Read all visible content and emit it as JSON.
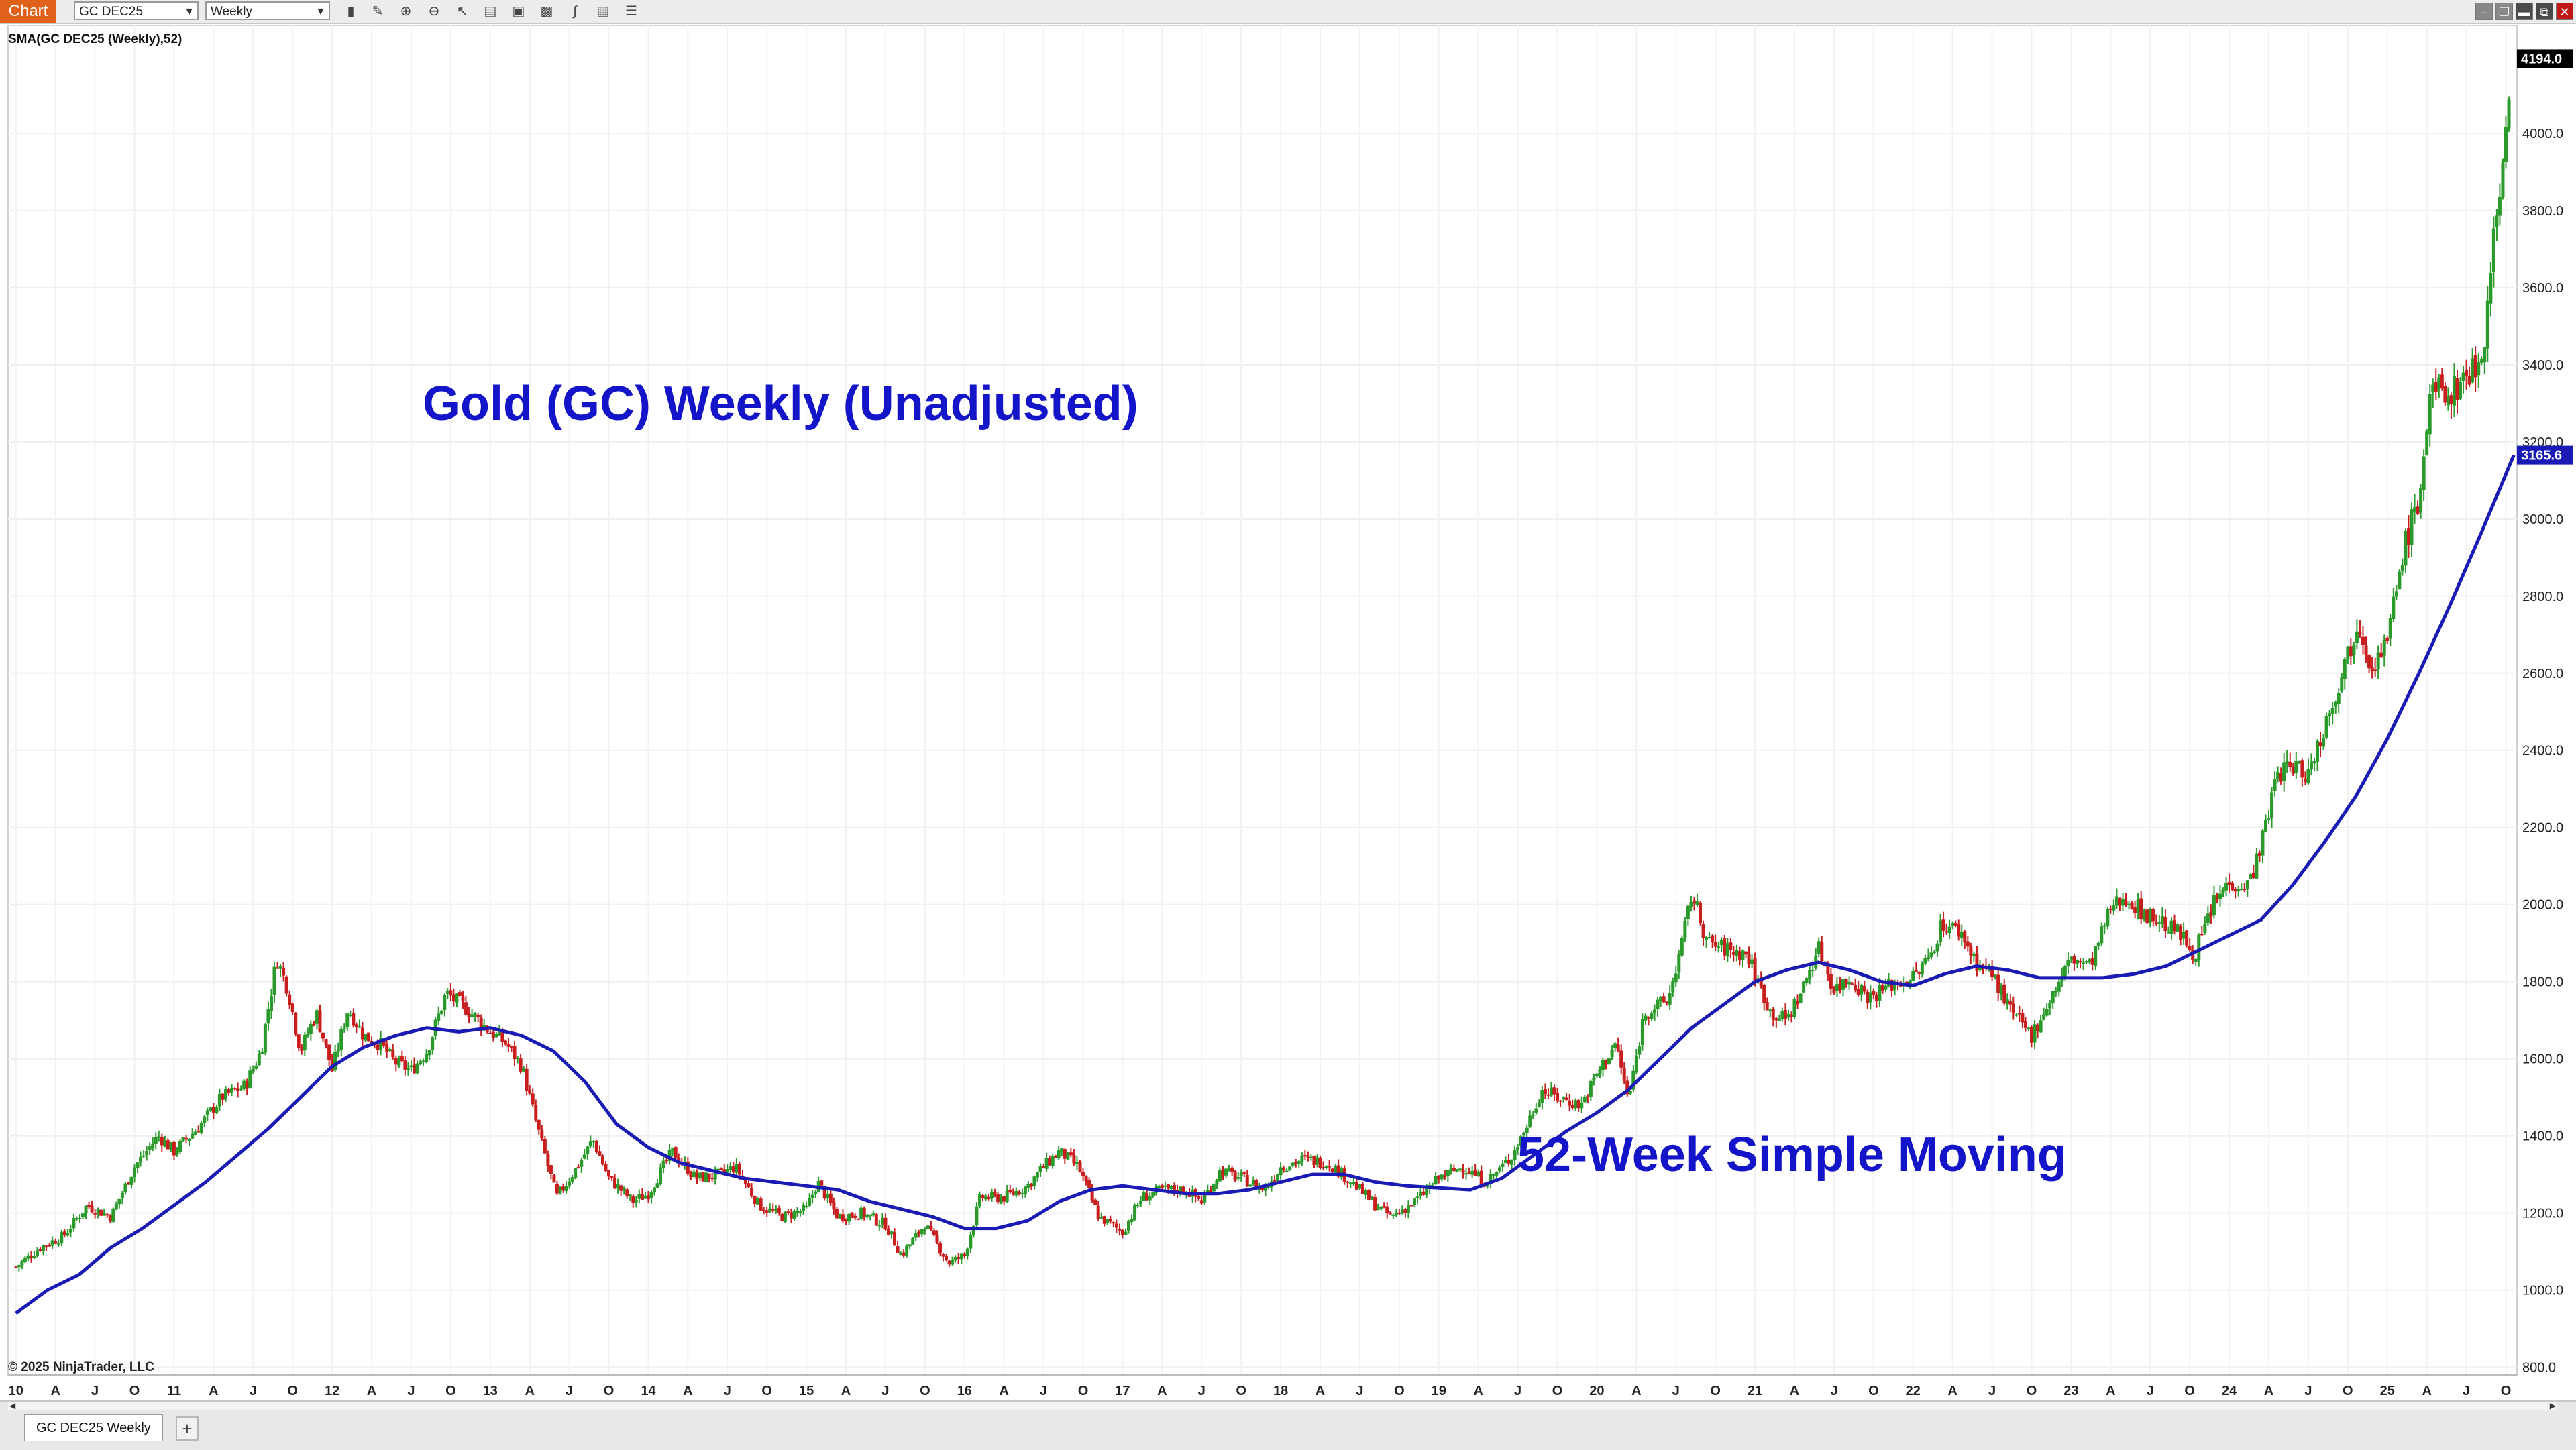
{
  "toolbar": {
    "chart_tab": "Chart",
    "instrument": "GC DEC25",
    "interval": "Weekly",
    "icons": [
      "bar-type-icon",
      "draw-tools-icon",
      "zoom-in-icon",
      "zoom-out-icon",
      "pointer-icon",
      "properties-icon",
      "templates-icon",
      "data-box-icon",
      "indicators-icon",
      "strategies-icon",
      "list-icon"
    ],
    "window_buttons": [
      "minimize-icon",
      "restore-icon",
      "maximize-icon",
      "close-icon"
    ]
  },
  "indicator_label": "SMA(GC DEC25 (Weekly),52)",
  "copyright": "© 2025 NinjaTrader, LLC",
  "bottom": {
    "instrument_tab": "GC DEC25 Weekly",
    "add_tab": "+"
  },
  "colors": {
    "up_candle": "#2a9a2a",
    "down_candle": "#c81e1e",
    "sma_line": "#1a1ab4",
    "annotation": "#1414c8",
    "price_badge": "#000000",
    "sma_badge": "#1a1ab4",
    "accent": "#e0611a"
  },
  "chart_data": {
    "type": "candlestick",
    "title": "Gold (GC) Weekly (Unadjusted)",
    "annotation": "52-Week Simple Moving",
    "ylim": [
      780,
      4280
    ],
    "y_ticks": [
      800,
      1000,
      1200,
      1400,
      1600,
      1800,
      2000,
      2200,
      2400,
      2600,
      2800,
      3000,
      3200,
      3400,
      3600,
      3800,
      4000
    ],
    "y_tick_labels": [
      "800.0",
      "1000.0",
      "1200.0",
      "1400.0",
      "1600.0",
      "1800.0",
      "2000.0",
      "2200.0",
      "2400.0",
      "2600.0",
      "2800.0",
      "3000.0",
      "3200.0",
      "3400.0",
      "3600.0",
      "3800.0",
      "4000.0"
    ],
    "x_range": [
      2009.95,
      2025.82
    ],
    "x_ticks": [
      {
        "label": "10",
        "t": 2010.0
      },
      {
        "label": "A",
        "t": 2010.25
      },
      {
        "label": "J",
        "t": 2010.5
      },
      {
        "label": "O",
        "t": 2010.75
      },
      {
        "label": "11",
        "t": 2011.0
      },
      {
        "label": "A",
        "t": 2011.25
      },
      {
        "label": "J",
        "t": 2011.5
      },
      {
        "label": "O",
        "t": 2011.75
      },
      {
        "label": "12",
        "t": 2012.0
      },
      {
        "label": "A",
        "t": 2012.25
      },
      {
        "label": "J",
        "t": 2012.5
      },
      {
        "label": "O",
        "t": 2012.75
      },
      {
        "label": "13",
        "t": 2013.0
      },
      {
        "label": "A",
        "t": 2013.25
      },
      {
        "label": "J",
        "t": 2013.5
      },
      {
        "label": "O",
        "t": 2013.75
      },
      {
        "label": "14",
        "t": 2014.0
      },
      {
        "label": "A",
        "t": 2014.25
      },
      {
        "label": "J",
        "t": 2014.5
      },
      {
        "label": "O",
        "t": 2014.75
      },
      {
        "label": "15",
        "t": 2015.0
      },
      {
        "label": "A",
        "t": 2015.25
      },
      {
        "label": "J",
        "t": 2015.5
      },
      {
        "label": "O",
        "t": 2015.75
      },
      {
        "label": "16",
        "t": 2016.0
      },
      {
        "label": "A",
        "t": 2016.25
      },
      {
        "label": "J",
        "t": 2016.5
      },
      {
        "label": "O",
        "t": 2016.75
      },
      {
        "label": "17",
        "t": 2017.0
      },
      {
        "label": "A",
        "t": 2017.25
      },
      {
        "label": "J",
        "t": 2017.5
      },
      {
        "label": "O",
        "t": 2017.75
      },
      {
        "label": "18",
        "t": 2018.0
      },
      {
        "label": "A",
        "t": 2018.25
      },
      {
        "label": "J",
        "t": 2018.5
      },
      {
        "label": "O",
        "t": 2018.75
      },
      {
        "label": "19",
        "t": 2019.0
      },
      {
        "label": "A",
        "t": 2019.25
      },
      {
        "label": "J",
        "t": 2019.5
      },
      {
        "label": "O",
        "t": 2019.75
      },
      {
        "label": "20",
        "t": 2020.0
      },
      {
        "label": "A",
        "t": 2020.25
      },
      {
        "label": "J",
        "t": 2020.5
      },
      {
        "label": "O",
        "t": 2020.75
      },
      {
        "label": "21",
        "t": 2021.0
      },
      {
        "label": "A",
        "t": 2021.25
      },
      {
        "label": "J",
        "t": 2021.5
      },
      {
        "label": "O",
        "t": 2021.75
      },
      {
        "label": "22",
        "t": 2022.0
      },
      {
        "label": "A",
        "t": 2022.25
      },
      {
        "label": "J",
        "t": 2022.5
      },
      {
        "label": "O",
        "t": 2022.75
      },
      {
        "label": "23",
        "t": 2023.0
      },
      {
        "label": "A",
        "t": 2023.25
      },
      {
        "label": "J",
        "t": 2023.5
      },
      {
        "label": "O",
        "t": 2023.75
      },
      {
        "label": "24",
        "t": 2024.0
      },
      {
        "label": "A",
        "t": 2024.25
      },
      {
        "label": "J",
        "t": 2024.5
      },
      {
        "label": "O",
        "t": 2024.75
      },
      {
        "label": "25",
        "t": 2025.0
      },
      {
        "label": "A",
        "t": 2025.25
      },
      {
        "label": "J",
        "t": 2025.5
      },
      {
        "label": "O",
        "t": 2025.75
      }
    ],
    "price_path": [
      [
        2010.0,
        1060
      ],
      [
        2010.15,
        1110
      ],
      [
        2010.3,
        1140
      ],
      [
        2010.45,
        1220
      ],
      [
        2010.6,
        1190
      ],
      [
        2010.75,
        1320
      ],
      [
        2010.9,
        1400
      ],
      [
        2011.0,
        1360
      ],
      [
        2011.15,
        1420
      ],
      [
        2011.3,
        1500
      ],
      [
        2011.45,
        1530
      ],
      [
        2011.55,
        1620
      ],
      [
        2011.65,
        1860
      ],
      [
        2011.72,
        1780
      ],
      [
        2011.8,
        1620
      ],
      [
        2011.9,
        1720
      ],
      [
        2012.0,
        1570
      ],
      [
        2012.1,
        1730
      ],
      [
        2012.2,
        1660
      ],
      [
        2012.3,
        1640
      ],
      [
        2012.4,
        1590
      ],
      [
        2012.5,
        1570
      ],
      [
        2012.6,
        1620
      ],
      [
        2012.72,
        1770
      ],
      [
        2012.85,
        1730
      ],
      [
        2013.0,
        1670
      ],
      [
        2013.1,
        1640
      ],
      [
        2013.2,
        1580
      ],
      [
        2013.3,
        1420
      ],
      [
        2013.42,
        1240
      ],
      [
        2013.55,
        1320
      ],
      [
        2013.65,
        1390
      ],
      [
        2013.75,
        1290
      ],
      [
        2013.9,
        1230
      ],
      [
        2014.0,
        1250
      ],
      [
        2014.15,
        1360
      ],
      [
        2014.3,
        1290
      ],
      [
        2014.45,
        1300
      ],
      [
        2014.55,
        1320
      ],
      [
        2014.7,
        1220
      ],
      [
        2014.85,
        1190
      ],
      [
        2015.0,
        1210
      ],
      [
        2015.07,
        1280
      ],
      [
        2015.2,
        1190
      ],
      [
        2015.35,
        1200
      ],
      [
        2015.5,
        1170
      ],
      [
        2015.6,
        1090
      ],
      [
        2015.75,
        1170
      ],
      [
        2015.9,
        1070
      ],
      [
        2016.0,
        1090
      ],
      [
        2016.1,
        1240
      ],
      [
        2016.25,
        1240
      ],
      [
        2016.4,
        1270
      ],
      [
        2016.5,
        1320
      ],
      [
        2016.6,
        1360
      ],
      [
        2016.72,
        1320
      ],
      [
        2016.85,
        1190
      ],
      [
        2017.0,
        1150
      ],
      [
        2017.12,
        1240
      ],
      [
        2017.25,
        1260
      ],
      [
        2017.4,
        1260
      ],
      [
        2017.5,
        1230
      ],
      [
        2017.62,
        1310
      ],
      [
        2017.75,
        1290
      ],
      [
        2017.9,
        1260
      ],
      [
        2018.0,
        1320
      ],
      [
        2018.15,
        1340
      ],
      [
        2018.3,
        1330
      ],
      [
        2018.45,
        1280
      ],
      [
        2018.6,
        1220
      ],
      [
        2018.7,
        1190
      ],
      [
        2018.85,
        1230
      ],
      [
        2019.0,
        1290
      ],
      [
        2019.15,
        1320
      ],
      [
        2019.3,
        1280
      ],
      [
        2019.45,
        1340
      ],
      [
        2019.55,
        1420
      ],
      [
        2019.65,
        1520
      ],
      [
        2019.75,
        1500
      ],
      [
        2019.9,
        1480
      ],
      [
        2020.0,
        1560
      ],
      [
        2020.12,
        1640
      ],
      [
        2020.2,
        1490
      ],
      [
        2020.3,
        1720
      ],
      [
        2020.45,
        1750
      ],
      [
        2020.55,
        1920
      ],
      [
        2020.6,
        2030
      ],
      [
        2020.7,
        1900
      ],
      [
        2020.85,
        1880
      ],
      [
        2020.95,
        1870
      ],
      [
        2021.1,
        1720
      ],
      [
        2021.2,
        1700
      ],
      [
        2021.3,
        1780
      ],
      [
        2021.4,
        1890
      ],
      [
        2021.5,
        1780
      ],
      [
        2021.6,
        1810
      ],
      [
        2021.72,
        1760
      ],
      [
        2021.85,
        1790
      ],
      [
        2022.0,
        1810
      ],
      [
        2022.1,
        1860
      ],
      [
        2022.18,
        1950
      ],
      [
        2022.3,
        1930
      ],
      [
        2022.4,
        1850
      ],
      [
        2022.5,
        1820
      ],
      [
        2022.62,
        1720
      ],
      [
        2022.75,
        1660
      ],
      [
        2022.85,
        1740
      ],
      [
        2023.0,
        1860
      ],
      [
        2023.12,
        1840
      ],
      [
        2023.25,
        1990
      ],
      [
        2023.35,
        2020
      ],
      [
        2023.45,
        1980
      ],
      [
        2023.55,
        1960
      ],
      [
        2023.7,
        1920
      ],
      [
        2023.78,
        1870
      ],
      [
        2023.9,
        2000
      ],
      [
        2024.0,
        2060
      ],
      [
        2024.12,
        2050
      ],
      [
        2024.22,
        2180
      ],
      [
        2024.3,
        2340
      ],
      [
        2024.4,
        2360
      ],
      [
        2024.5,
        2340
      ],
      [
        2024.6,
        2460
      ],
      [
        2024.75,
        2650
      ],
      [
        2024.82,
        2740
      ],
      [
        2024.9,
        2620
      ],
      [
        2025.0,
        2680
      ],
      [
        2025.1,
        2920
      ],
      [
        2025.2,
        3050
      ],
      [
        2025.27,
        3310
      ],
      [
        2025.33,
        3340
      ],
      [
        2025.4,
        3320
      ],
      [
        2025.5,
        3380
      ],
      [
        2025.58,
        3400
      ],
      [
        2025.63,
        3520
      ],
      [
        2025.68,
        3780
      ],
      [
        2025.74,
        3940
      ],
      [
        2025.78,
        4194
      ]
    ],
    "sma_path": [
      [
        2010.0,
        940
      ],
      [
        2010.2,
        1000
      ],
      [
        2010.4,
        1040
      ],
      [
        2010.6,
        1110
      ],
      [
        2010.8,
        1160
      ],
      [
        2011.0,
        1220
      ],
      [
        2011.2,
        1280
      ],
      [
        2011.4,
        1350
      ],
      [
        2011.6,
        1420
      ],
      [
        2011.8,
        1500
      ],
      [
        2012.0,
        1580
      ],
      [
        2012.2,
        1630
      ],
      [
        2012.4,
        1660
      ],
      [
        2012.6,
        1680
      ],
      [
        2012.8,
        1670
      ],
      [
        2013.0,
        1680
      ],
      [
        2013.2,
        1660
      ],
      [
        2013.4,
        1620
      ],
      [
        2013.6,
        1540
      ],
      [
        2013.8,
        1430
      ],
      [
        2014.0,
        1370
      ],
      [
        2014.2,
        1330
      ],
      [
        2014.4,
        1310
      ],
      [
        2014.6,
        1290
      ],
      [
        2014.8,
        1280
      ],
      [
        2015.0,
        1270
      ],
      [
        2015.2,
        1260
      ],
      [
        2015.4,
        1230
      ],
      [
        2015.6,
        1210
      ],
      [
        2015.8,
        1190
      ],
      [
        2016.0,
        1160
      ],
      [
        2016.2,
        1160
      ],
      [
        2016.4,
        1180
      ],
      [
        2016.6,
        1230
      ],
      [
        2016.8,
        1260
      ],
      [
        2017.0,
        1270
      ],
      [
        2017.2,
        1260
      ],
      [
        2017.4,
        1250
      ],
      [
        2017.6,
        1250
      ],
      [
        2017.8,
        1260
      ],
      [
        2018.0,
        1280
      ],
      [
        2018.2,
        1300
      ],
      [
        2018.4,
        1300
      ],
      [
        2018.6,
        1280
      ],
      [
        2018.8,
        1270
      ],
      [
        2019.0,
        1265
      ],
      [
        2019.2,
        1260
      ],
      [
        2019.4,
        1290
      ],
      [
        2019.6,
        1350
      ],
      [
        2019.8,
        1410
      ],
      [
        2020.0,
        1460
      ],
      [
        2020.2,
        1520
      ],
      [
        2020.4,
        1600
      ],
      [
        2020.6,
        1680
      ],
      [
        2020.8,
        1740
      ],
      [
        2021.0,
        1800
      ],
      [
        2021.2,
        1830
      ],
      [
        2021.4,
        1850
      ],
      [
        2021.6,
        1830
      ],
      [
        2021.8,
        1800
      ],
      [
        2022.0,
        1790
      ],
      [
        2022.2,
        1820
      ],
      [
        2022.4,
        1840
      ],
      [
        2022.6,
        1830
      ],
      [
        2022.8,
        1810
      ],
      [
        2023.0,
        1810
      ],
      [
        2023.2,
        1810
      ],
      [
        2023.4,
        1820
      ],
      [
        2023.6,
        1840
      ],
      [
        2023.8,
        1880
      ],
      [
        2024.0,
        1920
      ],
      [
        2024.2,
        1960
      ],
      [
        2024.4,
        2050
      ],
      [
        2024.6,
        2160
      ],
      [
        2024.8,
        2280
      ],
      [
        2025.0,
        2430
      ],
      [
        2025.2,
        2600
      ],
      [
        2025.4,
        2780
      ],
      [
        2025.6,
        2970
      ],
      [
        2025.8,
        3165.6
      ]
    ],
    "last_price": 4194.0,
    "last_price_label": "4194.0",
    "sma_last": 3165.6,
    "sma_last_label": "3165.6"
  }
}
